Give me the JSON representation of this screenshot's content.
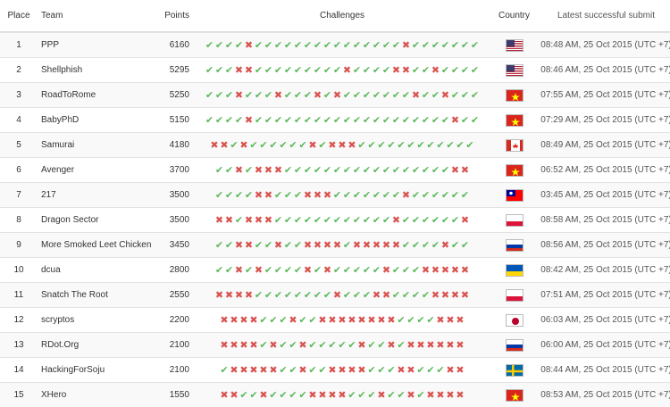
{
  "header": {
    "place": "Place",
    "team": "Team",
    "points": "Points",
    "challenges": "Challenges",
    "country": "Country",
    "submit": "Latest successful submit"
  },
  "colors": {
    "solved": "#5cb85c",
    "unsolved": "#d9534f"
  },
  "rows": [
    {
      "place": "1",
      "team": "PPP",
      "points": "6160",
      "challenges": "1111011111111111111101111111",
      "country": "us-flag",
      "submit": "08:48 AM, 25 Oct 2015 (UTC +7)"
    },
    {
      "place": "2",
      "team": "Shellphish",
      "points": "5295",
      "challenges": "1110011111111101111001101111",
      "country": "us-flag",
      "submit": "08:46 AM, 25 Oct 2015 (UTC +7)"
    },
    {
      "place": "3",
      "team": "RoadToRome",
      "points": "5250",
      "challenges": "1110111011101011111110110111",
      "country": "vn-flag",
      "submit": "07:55 AM, 25 Oct 2015 (UTC +7)"
    },
    {
      "place": "4",
      "team": "BabyPhD",
      "points": "5150",
      "challenges": "1111011111111111111111111011",
      "country": "vn-flag",
      "submit": "07:29 AM, 25 Oct 2015 (UTC +7)"
    },
    {
      "place": "5",
      "team": "Samurai",
      "points": "4180",
      "challenges": "001011111101000111111111111",
      "country": "ca-flag",
      "submit": "08:49 AM, 25 Oct 2015 (UTC +7)"
    },
    {
      "place": "6",
      "team": "Avenger",
      "points": "3700",
      "challenges": "11010001111111111111111100",
      "country": "vn-flag",
      "submit": "06:52 AM, 25 Oct 2015 (UTC +7)"
    },
    {
      "place": "7",
      "team": "217",
      "points": "3500",
      "challenges": "11110011100011111110111111",
      "country": "tw-flag",
      "submit": "03:45 AM, 25 Oct 2015 (UTC +7)"
    },
    {
      "place": "8",
      "team": "Dragon Sector",
      "points": "3500",
      "challenges": "00100011111111111101111110",
      "country": "pl-flag",
      "submit": "08:58 AM, 25 Oct 2015 (UTC +7)"
    },
    {
      "place": "9",
      "team": "More Smoked Leet Chicken",
      "points": "3450",
      "challenges": "11001101100001000001111011",
      "country": "ru-flag",
      "submit": "08:56 AM, 25 Oct 2015 (UTC +7)"
    },
    {
      "place": "10",
      "team": "dcua",
      "points": "2800",
      "challenges": "11010111101011111011100000",
      "country": "ua-flag",
      "submit": "08:42 AM, 25 Oct 2015 (UTC +7)"
    },
    {
      "place": "11",
      "team": "Snatch The Root",
      "points": "2550",
      "challenges": "00001111111101110011110000",
      "country": "pl-flag",
      "submit": "07:51 AM, 25 Oct 2015 (UTC +7)"
    },
    {
      "place": "12",
      "team": "scryptos",
      "points": "2200",
      "challenges": "0000111011000000001111000",
      "country": "jp-flag",
      "submit": "06:03 AM, 25 Oct 2015 (UTC +7)"
    },
    {
      "place": "13",
      "team": "RDot.Org",
      "points": "2100",
      "challenges": "0000101101111101101000000",
      "country": "ru-flag",
      "submit": "06:00 AM, 25 Oct 2015 (UTC +7)"
    },
    {
      "place": "14",
      "team": "HackingForSoju",
      "points": "2100",
      "challenges": "1000001101100001110011100",
      "country": "se-flag",
      "submit": "08:44 AM, 25 Oct 2015 (UTC +7)"
    },
    {
      "place": "15",
      "team": "XHero",
      "points": "1550",
      "challenges": "0011011110000111011010000",
      "country": "vn-flag",
      "submit": "08:53 AM, 25 Oct 2015 (UTC +7)"
    }
  ]
}
